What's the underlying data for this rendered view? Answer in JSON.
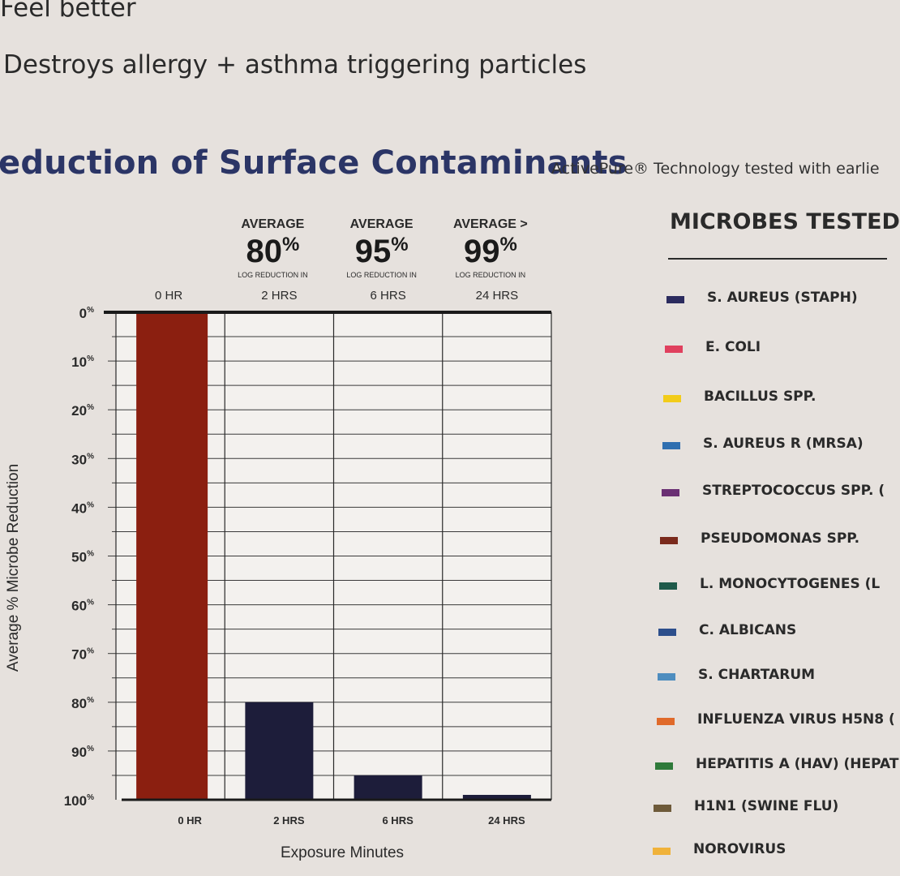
{
  "bullets": [
    "Feel better",
    "Destroys allergy + asthma triggering particles"
  ],
  "header": {
    "title": "eduction of Surface Contaminants",
    "subtitle": "ActivePure® Technology tested with earlie"
  },
  "averages": [
    {
      "label": "AVERAGE",
      "value": "80",
      "unit": "%",
      "sub": "LOG REDUCTION IN",
      "time": "2 HRS"
    },
    {
      "label": "AVERAGE",
      "value": "95",
      "unit": "%",
      "sub": "LOG REDUCTION IN",
      "time": "6 HRS"
    },
    {
      "label": "AVERAGE >",
      "value": "99",
      "unit": "%",
      "sub": "LOG REDUCTION IN",
      "time": "24 HRS"
    }
  ],
  "chart_data": {
    "type": "bar",
    "categories": [
      "0 HR",
      "2 HRS",
      "6 HRS",
      "24 HRS"
    ],
    "top_labels": [
      "0 HR",
      "2 HRS",
      "6 HRS",
      "24 HRS"
    ],
    "values": [
      0,
      80,
      95,
      99
    ],
    "bar_colors": [
      "#8b1f10",
      "#1d1d3a",
      "#1d1d3a",
      "#1d1d3a"
    ],
    "ylabel": "Average % Microbe Reduction",
    "xlabel": "Exposure Minutes",
    "y_ticks": [
      "0%",
      "10%",
      "20%",
      "30%",
      "40%",
      "50%",
      "60%",
      "70%",
      "80%",
      "90%",
      "100%"
    ],
    "ylim": [
      0,
      100
    ],
    "y_inverted": true,
    "grid": true
  },
  "legend": {
    "title": "MICROBES TESTED",
    "items": [
      {
        "label": "S. AUREUS (STAPH)",
        "color": "#2b2b5e"
      },
      {
        "label": "E. COLI",
        "color": "#e0405e"
      },
      {
        "label": "BACILLUS SPP.",
        "color": "#f2cc1a"
      },
      {
        "label": "S. AUREUS R (MRSA)",
        "color": "#2f6fb0"
      },
      {
        "label": "STREPTOCOCCUS SPP. (",
        "color": "#6a2f73"
      },
      {
        "label": "PSEUDOMONAS SPP.",
        "color": "#7a2a1c"
      },
      {
        "label": "L. MONOCYTOGENES (L",
        "color": "#1f5a4a"
      },
      {
        "label": "C. ALBICANS",
        "color": "#2d4f8c"
      },
      {
        "label": "S. CHARTARUM",
        "color": "#4e8dbf"
      },
      {
        "label": "INFLUENZA VIRUS H5N8 (",
        "color": "#e06a2a"
      },
      {
        "label": "HEPATITIS A (HAV) (HEPAT",
        "color": "#2f7a3a"
      },
      {
        "label": "H1N1 (SWINE FLU)",
        "color": "#6e5a3a"
      },
      {
        "label": "NOROVIRUS",
        "color": "#f0b23a"
      }
    ]
  }
}
